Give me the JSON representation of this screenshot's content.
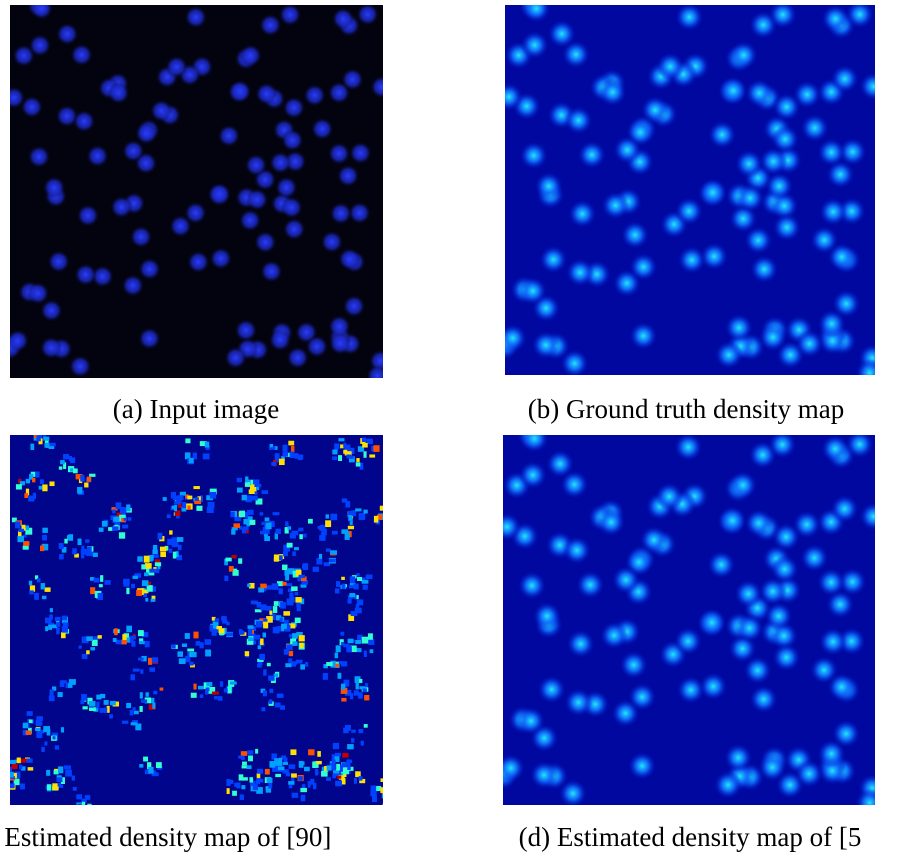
{
  "panels": [
    {
      "caption": "(a) Input image"
    },
    {
      "caption": "(b) Ground truth density map"
    },
    {
      "caption": ") Estimated density map of [90]"
    },
    {
      "caption": "(d) Estimated density map of [5"
    }
  ]
}
